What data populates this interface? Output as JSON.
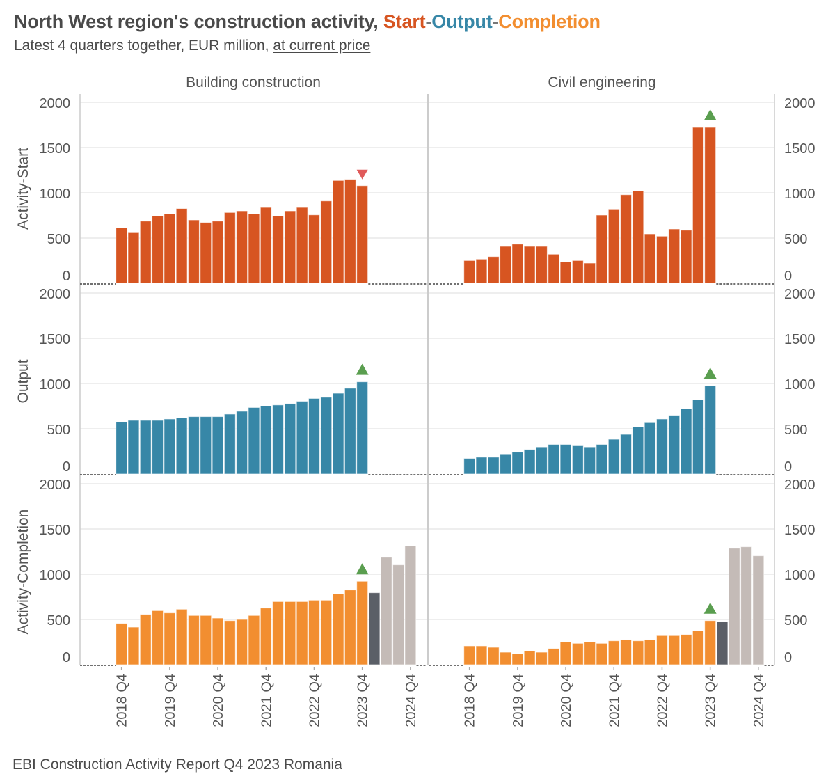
{
  "title": {
    "prefix": "North West region's construction activity, ",
    "part_start": "Start",
    "sep1": "-",
    "part_output": "Output",
    "sep2": "-",
    "part_completion": "Completion"
  },
  "subtitle": {
    "text": "Latest 4 quarters together, EUR million, ",
    "link": "at current price"
  },
  "footer": "EBI Construction Activity Report Q4 2023 Romania",
  "colors": {
    "start": "#d75521",
    "output": "#3787a7",
    "completion": "#f28e30",
    "nowcast": "#5b5f67",
    "forecast": "#c4bbb7",
    "marker_up": "#5a9e4f",
    "marker_down": "#e05a5a"
  },
  "chart_data": {
    "type": "bar",
    "ylim": [
      0,
      2000
    ],
    "yticks": [
      0,
      500,
      1000,
      1500,
      2000
    ],
    "grid": true,
    "columns": [
      "Building construction",
      "Civil engineering"
    ],
    "rows": [
      "Activity-Start",
      "Output",
      "Activity-Completion"
    ],
    "categories": [
      "2018 Q4",
      "2019 Q1",
      "2019 Q2",
      "2019 Q3",
      "2019 Q4",
      "2020 Q1",
      "2020 Q2",
      "2020 Q3",
      "2020 Q4",
      "2021 Q1",
      "2021 Q2",
      "2021 Q3",
      "2021 Q4",
      "2022 Q1",
      "2022 Q2",
      "2022 Q3",
      "2022 Q4",
      "2023 Q1",
      "2023 Q2",
      "2023 Q3",
      "2023 Q4",
      "2024 Q1",
      "2024 Q2",
      "2024 Q3",
      "2024 Q4"
    ],
    "xtick_labels": [
      "2018 Q4",
      "2019 Q4",
      "2020 Q4",
      "2021 Q4",
      "2022 Q4",
      "2023 Q4",
      "2024 Q4"
    ],
    "panels": [
      {
        "column": 0,
        "row": 0,
        "series": "start",
        "values": [
          615,
          559,
          687,
          744,
          769,
          826,
          700,
          672,
          687,
          782,
          800,
          769,
          838,
          744,
          800,
          838,
          756,
          910,
          1136,
          1149,
          1079
        ],
        "change_marker": "down"
      },
      {
        "column": 1,
        "row": 0,
        "series": "start",
        "values": [
          251,
          267,
          295,
          408,
          433,
          408,
          408,
          321,
          238,
          251,
          223,
          754,
          813,
          979,
          1023,
          546,
          521,
          600,
          587,
          1723,
          1723
        ],
        "change_marker": "up"
      },
      {
        "column": 0,
        "row": 1,
        "series": "output",
        "values": [
          577,
          593,
          593,
          593,
          608,
          621,
          634,
          634,
          634,
          662,
          693,
          735,
          750,
          763,
          778,
          804,
          835,
          848,
          892,
          948,
          1018
        ],
        "change_marker": "up"
      },
      {
        "column": 1,
        "row": 1,
        "series": "output",
        "values": [
          173,
          186,
          186,
          214,
          242,
          271,
          299,
          327,
          327,
          312,
          299,
          327,
          384,
          438,
          523,
          567,
          608,
          649,
          722,
          820,
          977
        ],
        "change_marker": "up"
      },
      {
        "column": 0,
        "row": 2,
        "series": "completion",
        "values": [
          456,
          415,
          556,
          597,
          572,
          613,
          544,
          544,
          515,
          487,
          500,
          544,
          626,
          697,
          697,
          697,
          713,
          713,
          782,
          826,
          921
        ],
        "nowcast": [
          795
        ],
        "forecast": [
          1187,
          1103,
          1315
        ],
        "change_marker": "up"
      },
      {
        "column": 1,
        "row": 2,
        "series": "completion",
        "values": [
          208,
          208,
          192,
          138,
          123,
          154,
          138,
          179,
          251,
          236,
          251,
          236,
          264,
          277,
          264,
          277,
          321,
          321,
          333,
          377,
          487
        ],
        "nowcast": [
          474
        ],
        "forecast": [
          1287,
          1303,
          1203
        ],
        "change_marker": "up"
      }
    ]
  }
}
